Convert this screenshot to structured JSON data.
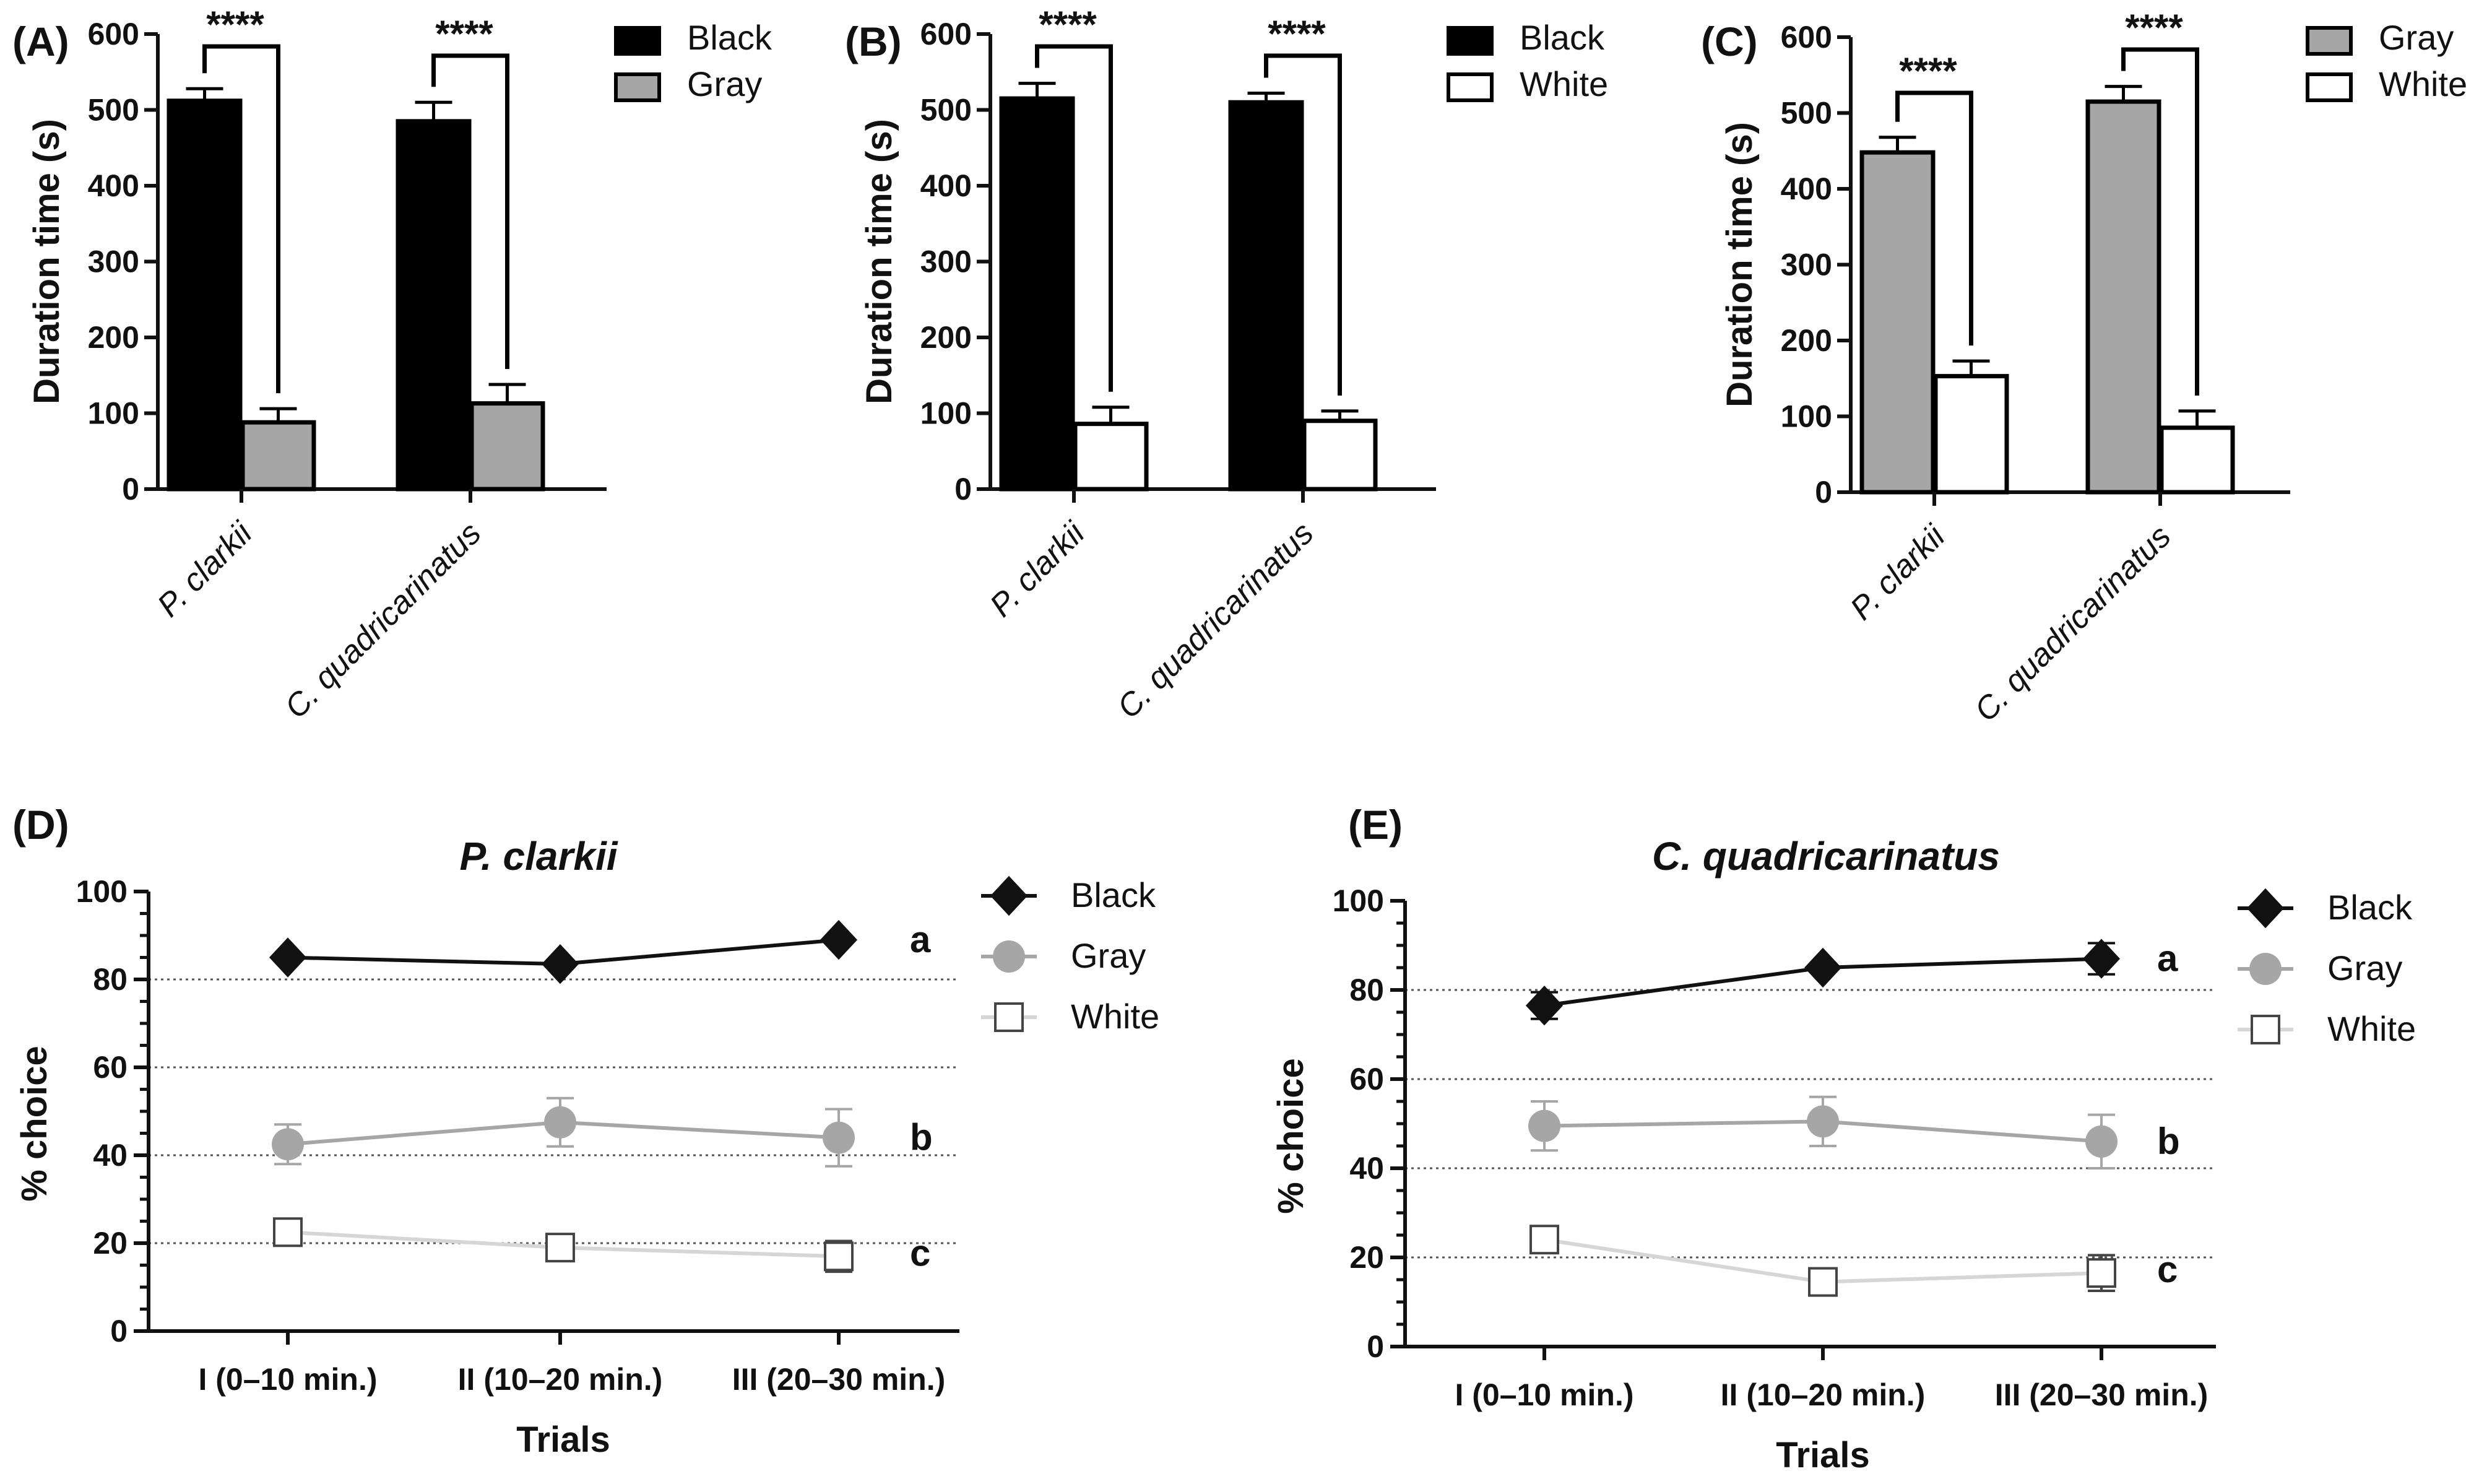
{
  "chart_data": [
    {
      "id": "A",
      "type": "bar",
      "panel_label": "(A)",
      "title": "",
      "xlabel": "",
      "ylabel": "Duration time (s)",
      "ylim": [
        0,
        600
      ],
      "yticks": [
        0,
        100,
        200,
        300,
        400,
        500,
        600
      ],
      "categories": [
        "P. clarkii",
        "C. quadricarinatus"
      ],
      "series": [
        {
          "name": "Black",
          "color": "#000000",
          "values": [
            512,
            485
          ],
          "errors": [
            16,
            25
          ]
        },
        {
          "name": "Gray",
          "color": "#a6a6a6",
          "values": [
            88,
            113
          ],
          "errors": [
            18,
            25
          ]
        }
      ],
      "significance": [
        "****",
        "****"
      ],
      "legend": "top-right"
    },
    {
      "id": "B",
      "type": "bar",
      "panel_label": "(B)",
      "title": "",
      "xlabel": "",
      "ylabel": "Duration time (s)",
      "ylim": [
        0,
        600
      ],
      "yticks": [
        0,
        100,
        200,
        300,
        400,
        500,
        600
      ],
      "categories": [
        "P. clarkii",
        "C. quadricarinatus"
      ],
      "series": [
        {
          "name": "Black",
          "color": "#000000",
          "values": [
            515,
            510
          ],
          "errors": [
            20,
            12
          ]
        },
        {
          "name": "White",
          "color": "#ffffff",
          "values": [
            86,
            90
          ],
          "errors": [
            22,
            13
          ]
        }
      ],
      "significance": [
        "****",
        "****"
      ],
      "legend": "top-right"
    },
    {
      "id": "C",
      "type": "bar",
      "panel_label": "(C)",
      "title": "",
      "xlabel": "",
      "ylabel": "Duration time (s)",
      "ylim": [
        0,
        600
      ],
      "yticks": [
        0,
        100,
        200,
        300,
        400,
        500,
        600
      ],
      "categories": [
        "P. clarkii",
        "C. quadricarinatus"
      ],
      "series": [
        {
          "name": "Gray",
          "color": "#a6a6a6",
          "values": [
            448,
            515
          ],
          "errors": [
            20,
            20
          ]
        },
        {
          "name": "White",
          "color": "#ffffff",
          "values": [
            153,
            85
          ],
          "errors": [
            20,
            22
          ]
        }
      ],
      "significance": [
        "****",
        "****"
      ],
      "legend": "top-right"
    },
    {
      "id": "D",
      "type": "line",
      "panel_label": "(D)",
      "title": "P. clarkii",
      "xlabel": "Trials",
      "ylabel": "% choice",
      "ylim": [
        0,
        100
      ],
      "yticks": [
        0,
        20,
        40,
        60,
        80,
        100
      ],
      "grid": "horizontal dotted at 20, 40, 60, 80",
      "categories": [
        "I (0–10 min.)",
        "II (10–20 min.)",
        "III (20–30 min.)"
      ],
      "series": [
        {
          "name": "Black",
          "marker": "diamond",
          "color": "#111111",
          "values": [
            85,
            83.5,
            89
          ],
          "errors": [
            0,
            0,
            0
          ],
          "group": "a"
        },
        {
          "name": "Gray",
          "marker": "circle",
          "color": "#a6a6a6",
          "values": [
            42.5,
            47.5,
            44
          ],
          "errors": [
            4.5,
            5.5,
            6.5
          ],
          "group": "b"
        },
        {
          "name": "White",
          "marker": "square",
          "color": "#d4d4d4",
          "values": [
            22.5,
            19,
            17
          ],
          "errors": [
            1.5,
            2.5,
            3.5
          ],
          "group": "c"
        }
      ],
      "legend": "top-right"
    },
    {
      "id": "E",
      "type": "line",
      "panel_label": "(E)",
      "title": "C. quadricarinatus",
      "xlabel": "Trials",
      "ylabel": "% choice",
      "ylim": [
        0,
        100
      ],
      "yticks": [
        0,
        20,
        40,
        60,
        80,
        100
      ],
      "grid": "horizontal dotted at 20, 40, 60, 80",
      "categories": [
        "I (0–10 min.)",
        "II (10–20 min.)",
        "III (20–30 min.)"
      ],
      "series": [
        {
          "name": "Black",
          "marker": "diamond",
          "color": "#111111",
          "values": [
            76.5,
            85,
            87
          ],
          "errors": [
            3,
            0,
            3.5
          ],
          "group": "a"
        },
        {
          "name": "Gray",
          "marker": "circle",
          "color": "#a6a6a6",
          "values": [
            49.5,
            50.5,
            46
          ],
          "errors": [
            5.5,
            5.5,
            6
          ],
          "group": "b"
        },
        {
          "name": "White",
          "marker": "square",
          "color": "#d4d4d4",
          "values": [
            24,
            14.5,
            16.5
          ],
          "errors": [
            2.5,
            0,
            4
          ],
          "group": "c"
        }
      ],
      "legend": "top-right"
    }
  ]
}
